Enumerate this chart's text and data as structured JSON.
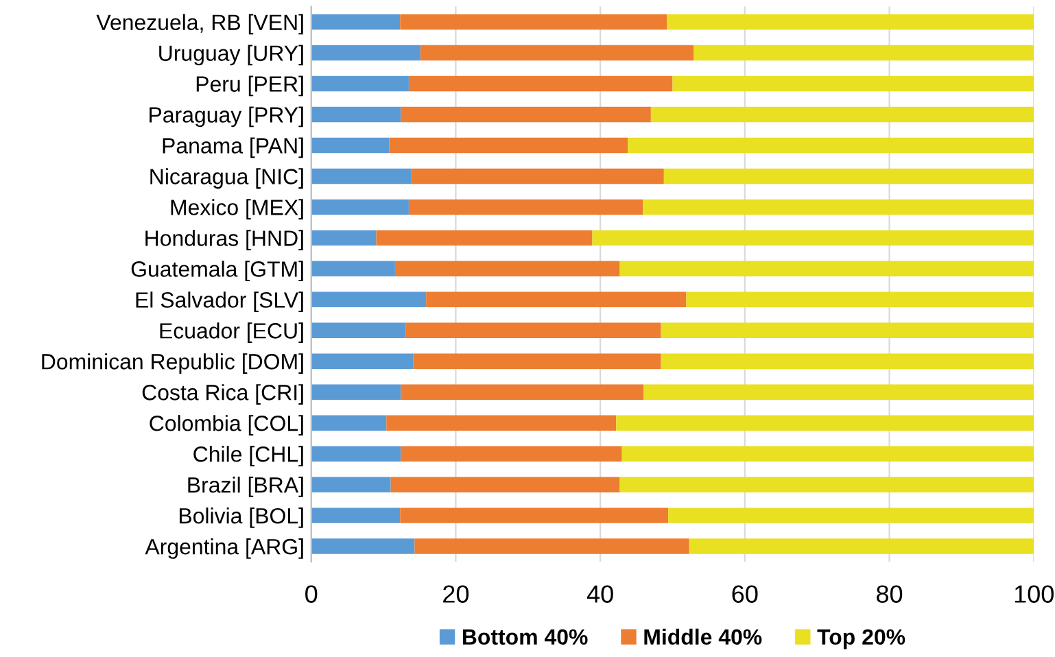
{
  "chart_data": {
    "type": "bar",
    "orientation": "horizontal",
    "stacked": true,
    "categories": [
      "Venezuela, RB [VEN]",
      "Uruguay [URY]",
      "Peru [PER]",
      "Paraguay [PRY]",
      "Panama [PAN]",
      "Nicaragua [NIC]",
      "Mexico [MEX]",
      "Honduras [HND]",
      "Guatemala [GTM]",
      "El Salvador [SLV]",
      "Ecuador [ECU]",
      "Dominican Republic [DOM]",
      "Costa Rica [CRI]",
      "Colombia [COL]",
      "Chile [CHL]",
      "Brazil [BRA]",
      "Bolivia [BOL]",
      "Argentina [ARG]"
    ],
    "series": [
      {
        "name": "Bottom 40%",
        "color": "#5b9bd5",
        "values": [
          12.3,
          15.1,
          13.5,
          12.4,
          10.8,
          13.8,
          13.5,
          9.0,
          11.6,
          15.9,
          13.1,
          14.1,
          12.4,
          10.4,
          12.4,
          11.0,
          12.3,
          14.3
        ]
      },
      {
        "name": "Middle 40%",
        "color": "#ed7d31",
        "values": [
          36.9,
          37.8,
          36.5,
          34.6,
          33.0,
          35.0,
          32.4,
          29.9,
          31.1,
          36.0,
          35.3,
          34.3,
          33.6,
          31.8,
          30.6,
          31.7,
          37.1,
          38.0
        ]
      },
      {
        "name": "Top 20%",
        "color": "#e8e020",
        "values": [
          50.8,
          47.1,
          50.0,
          53.0,
          56.2,
          51.2,
          54.1,
          61.1,
          57.3,
          48.1,
          51.6,
          51.6,
          54.0,
          57.8,
          57.0,
          57.3,
          50.6,
          47.7
        ]
      }
    ],
    "xlim": [
      0,
      100
    ],
    "xticks": [
      0,
      20,
      40,
      60,
      80,
      100
    ],
    "grid": "x",
    "legend": "bottom"
  }
}
